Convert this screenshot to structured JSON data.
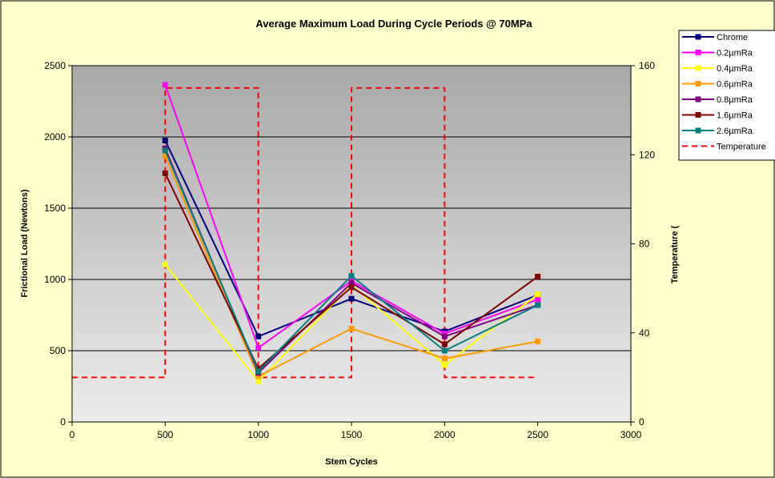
{
  "chart_data": {
    "type": "line",
    "title": "Average Maximum Load During Cycle Periods @ 70MPa",
    "xlabel": "Stem Cycles",
    "ylabel": "Frictional Load (Newtons)",
    "y2label": "Temperature (",
    "xlim": [
      0,
      3000
    ],
    "ylim": [
      0,
      2500
    ],
    "y2lim": [
      0,
      160
    ],
    "xticks": [
      0,
      500,
      1000,
      1500,
      2000,
      2500,
      3000
    ],
    "yticks": [
      0,
      500,
      1000,
      1500,
      2000,
      2500
    ],
    "y2ticks": [
      0,
      40,
      80,
      120,
      160
    ],
    "grid": true,
    "legend_position": "right",
    "x": [
      500,
      1000,
      1500,
      2000,
      2500
    ],
    "series": [
      {
        "name": "Chrome",
        "color": "#000080",
        "values": [
          1975,
          600,
          865,
          635,
          890
        ]
      },
      {
        "name": "0.2µmRa",
        "color": "#ff00ff",
        "values": [
          2365,
          520,
          990,
          620,
          860
        ]
      },
      {
        "name": "0.4µmRa",
        "color": "#ffff00",
        "values": [
          1105,
          285,
          960,
          400,
          895
        ]
      },
      {
        "name": "0.6µmRa",
        "color": "#ff9900",
        "values": [
          1865,
          320,
          655,
          445,
          565
        ]
      },
      {
        "name": "0.8µmRa",
        "color": "#800080",
        "values": [
          1920,
          345,
          975,
          600,
          820
        ]
      },
      {
        "name": "1.6µmRa",
        "color": "#800000",
        "values": [
          1745,
          375,
          945,
          545,
          1020
        ]
      },
      {
        "name": "2.6µmRa",
        "color": "#008080",
        "values": [
          1905,
          355,
          1025,
          500,
          820
        ]
      }
    ],
    "temperature": {
      "name": "Temperature",
      "color": "#ff0000",
      "x": [
        0,
        500,
        500,
        1000,
        1000,
        1500,
        1500,
        2000,
        2000,
        2500
      ],
      "values": [
        20,
        20,
        150,
        150,
        20,
        20,
        150,
        150,
        20,
        20
      ]
    }
  }
}
